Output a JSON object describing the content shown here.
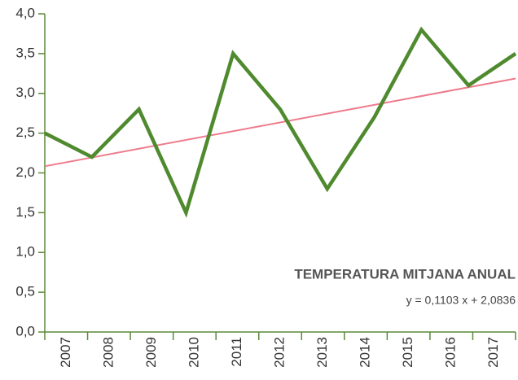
{
  "chart_data": {
    "type": "line",
    "categories": [
      "2007",
      "2008",
      "2009",
      "2010",
      "2011",
      "2012",
      "2013",
      "2014",
      "2015",
      "2016",
      "2017"
    ],
    "series": [
      {
        "color": "#4f8a2e",
        "values": [
          2.5,
          2.2,
          2.8,
          1.5,
          3.5,
          2.8,
          1.8,
          2.7,
          3.8,
          3.1,
          3.5
        ]
      }
    ],
    "ylim": [
      0,
      4
    ],
    "yticks": [
      {
        "value": 0,
        "label": "0,0"
      },
      {
        "value": 0.5,
        "label": "0,5"
      },
      {
        "value": 1,
        "label": "1,0"
      },
      {
        "value": 1.5,
        "label": "1,5"
      },
      {
        "value": 2,
        "label": "2,0"
      },
      {
        "value": 2.5,
        "label": "2,5"
      },
      {
        "value": 3,
        "label": "3,0"
      },
      {
        "value": 3.5,
        "label": "3,5"
      },
      {
        "value": 4,
        "label": "4,0"
      }
    ],
    "annotation": "TEMPERATURA MITJANA ANUAL",
    "trend": {
      "slope": 0.1103,
      "intercept": 2.0836,
      "label": "y = 0,1103 x + 2,0836",
      "color": "#ee7b8c"
    },
    "axis_color": "#5a8a3a"
  }
}
